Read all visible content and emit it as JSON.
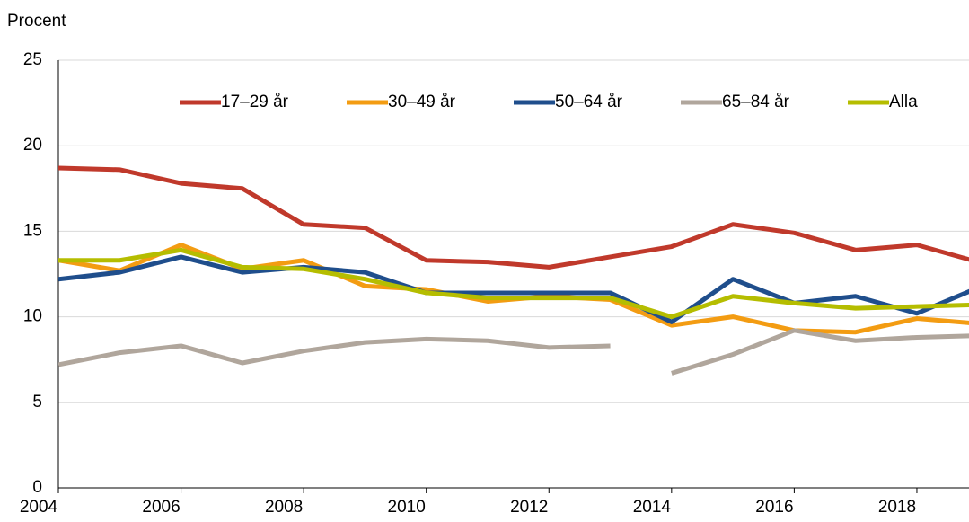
{
  "chart_data": {
    "type": "line",
    "y_label": "Procent",
    "x": [
      2004,
      2005,
      2006,
      2007,
      2008,
      2009,
      2010,
      2011,
      2012,
      2013,
      2014,
      2015,
      2016,
      2017,
      2018,
      2019
    ],
    "series": [
      {
        "name": "17–29 år",
        "color": "#c0392b",
        "values": [
          18.7,
          18.6,
          17.8,
          17.5,
          15.4,
          15.2,
          13.3,
          13.2,
          12.9,
          13.5,
          14.1,
          15.4,
          14.9,
          13.9,
          14.2,
          13.2
        ]
      },
      {
        "name": "30–49 år",
        "color": "#f39c12",
        "values": [
          13.3,
          12.7,
          14.2,
          12.8,
          13.3,
          11.8,
          11.6,
          10.9,
          11.2,
          11.0,
          9.5,
          10.0,
          9.2,
          9.1,
          9.9,
          9.6
        ]
      },
      {
        "name": "50–64 år",
        "color": "#1f4e8c",
        "values": [
          12.2,
          12.6,
          13.5,
          12.6,
          12.9,
          12.6,
          11.4,
          11.4,
          11.4,
          11.4,
          9.7,
          12.2,
          10.8,
          11.2,
          10.2,
          11.7
        ]
      },
      {
        "name": "65–84 år",
        "color": "#b0a69c",
        "x": [
          2004,
          2005,
          2006,
          2007,
          2008,
          2009,
          2010,
          2011,
          2012,
          2013,
          2013.5,
          2014,
          2015,
          2016,
          2017,
          2018,
          2019
        ],
        "values": [
          7.2,
          7.9,
          8.3,
          7.3,
          8.0,
          8.5,
          8.7,
          8.6,
          8.2,
          8.3,
          null,
          6.7,
          7.8,
          9.2,
          8.6,
          8.8,
          8.9
        ]
      },
      {
        "name": "Alla",
        "color": "#b5bd00",
        "values": [
          13.3,
          13.3,
          13.9,
          12.9,
          12.8,
          12.2,
          11.4,
          11.1,
          11.1,
          11.1,
          10.0,
          11.2,
          10.8,
          10.5,
          10.6,
          10.7
        ]
      }
    ],
    "xlim": [
      2004,
      2018.85
    ],
    "xticks": [
      2004,
      2006,
      2008,
      2010,
      2012,
      2014,
      2016,
      2018
    ],
    "ylim": [
      0,
      25
    ],
    "yticks": [
      0,
      5,
      10,
      15,
      20,
      25
    ],
    "grid": true
  }
}
